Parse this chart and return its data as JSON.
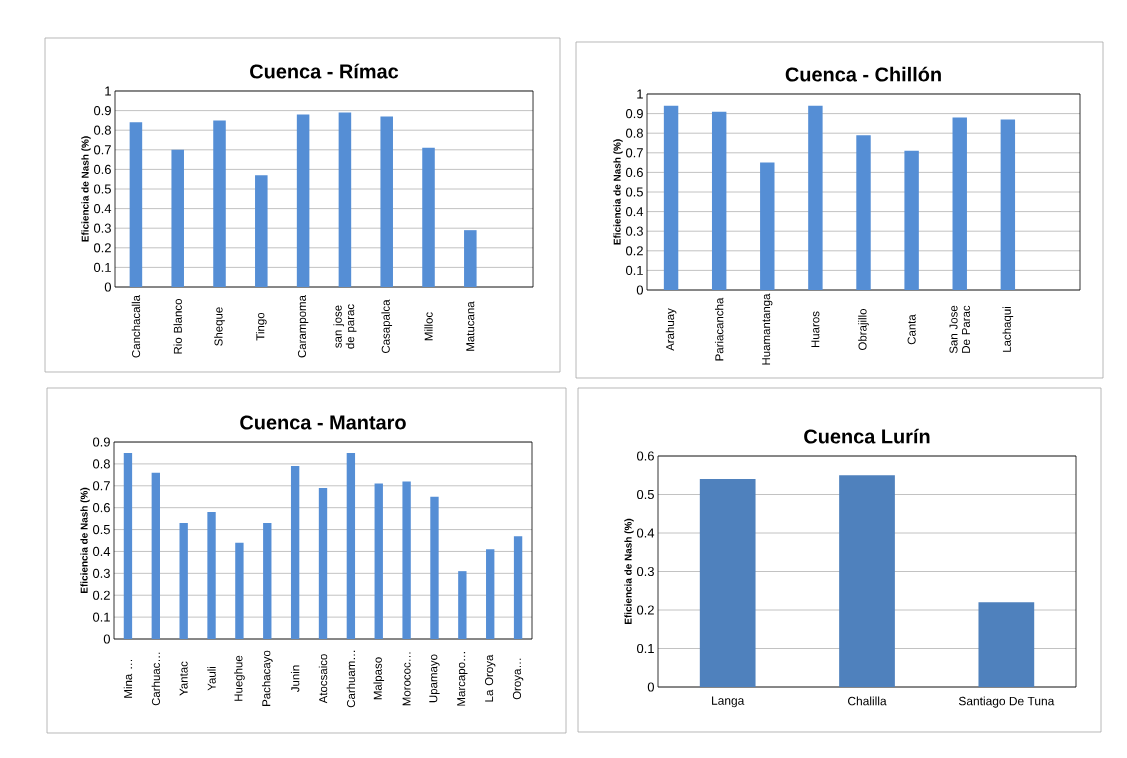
{
  "chart_data": [
    {
      "type": "bar",
      "title": "Cuenca - Rímac",
      "ylabel": "Eficiencia  de Nash (%)",
      "categories": [
        "Canchacalla",
        "Rio Blanco",
        "Sheque",
        "Tingo",
        "Carampoma",
        "san jose de parac",
        "Casapalca",
        "Milloc",
        "Matucana",
        null
      ],
      "values": [
        0.84,
        0.7,
        0.85,
        0.57,
        0.88,
        0.89,
        0.87,
        0.71,
        0.29,
        null
      ],
      "color": "#558ed5",
      "ylim": [
        0,
        1
      ],
      "yticks": [
        0,
        0.1,
        0.2,
        0.3,
        0.4,
        0.5,
        0.6,
        0.7,
        0.8,
        0.9,
        1
      ],
      "grid": "y"
    },
    {
      "type": "bar",
      "title": "Cuenca - Chillón",
      "ylabel": "Eficiencia  de Nash (%)",
      "categories": [
        "Arahuay",
        "Pariacancha",
        "Huamantanga",
        "Huaros",
        "Obrajillo",
        "Canta",
        "San Jose De Parac",
        "Lachaqui",
        null
      ],
      "values": [
        0.94,
        0.91,
        0.65,
        0.94,
        0.79,
        0.71,
        0.88,
        0.87,
        null
      ],
      "color": "#558ed5",
      "ylim": [
        0,
        1
      ],
      "yticks": [
        0,
        0.1,
        0.2,
        0.3,
        0.4,
        0.5,
        0.6,
        0.7,
        0.8,
        0.9,
        1
      ],
      "grid": "y"
    },
    {
      "type": "bar",
      "title": "Cuenca - Mantaro",
      "ylabel": "Eficiencia  de Nash (%)",
      "categories": [
        "Mina …",
        "Carhuac…",
        "Yantac",
        "Yauli",
        "Hueghue",
        "Pachacayo",
        "Junin",
        "Atocsaico",
        "Carhuam…",
        "Malpaso",
        "Morococ…",
        "Upamayo",
        "Marcapo…",
        "La Oroya",
        "Oroya…"
      ],
      "values": [
        0.85,
        0.76,
        0.53,
        0.58,
        0.44,
        0.53,
        0.79,
        0.69,
        0.85,
        0.71,
        0.72,
        0.65,
        0.31,
        0.41,
        0.47
      ],
      "color": "#558ed5",
      "ylim": [
        0,
        0.9
      ],
      "yticks": [
        0,
        0.1,
        0.2,
        0.3,
        0.4,
        0.5,
        0.6,
        0.7,
        0.8,
        0.9
      ],
      "grid": "y"
    },
    {
      "type": "bar",
      "title": "Cuenca Lurín",
      "ylabel": "Eficiencia  de Nash (%)",
      "categories": [
        "Langa",
        "Chalilla",
        "Santiago De Tuna"
      ],
      "values": [
        0.54,
        0.55,
        0.22
      ],
      "color": "#4f81bd",
      "ylim": [
        0,
        0.6
      ],
      "yticks": [
        0,
        0.1,
        0.2,
        0.3,
        0.4,
        0.5,
        0.6
      ],
      "grid": "y"
    }
  ]
}
